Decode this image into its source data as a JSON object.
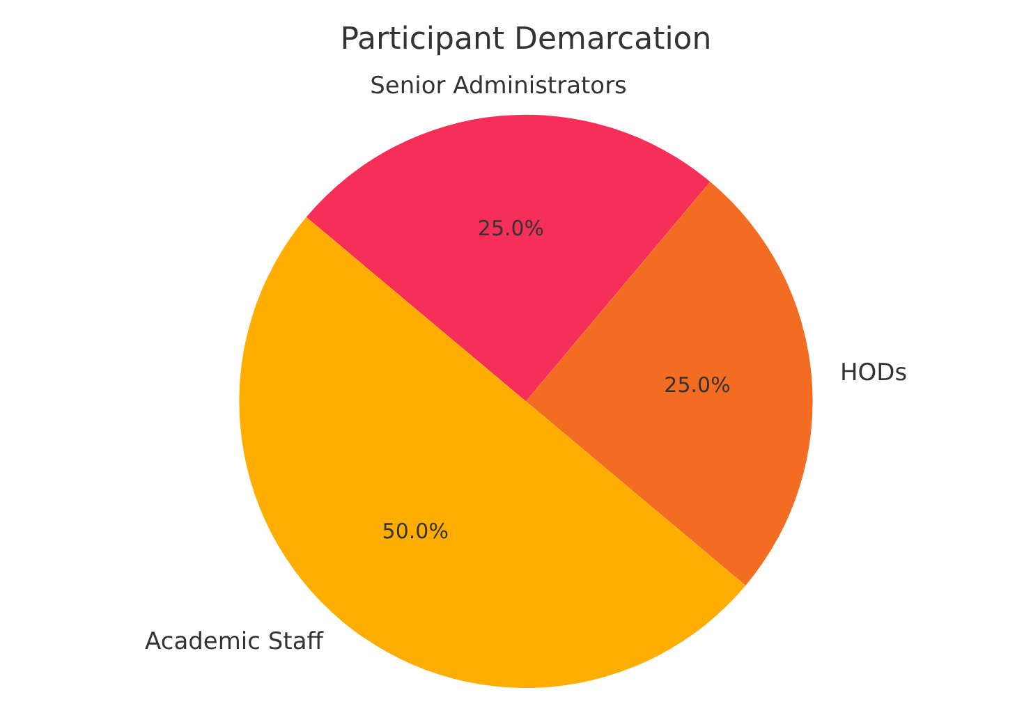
{
  "chart_data": {
    "type": "pie",
    "title": "Participant Demarcation",
    "categories": [
      "Senior Administrators",
      "HODs",
      "Academic Staff"
    ],
    "values": [
      25,
      25,
      50
    ],
    "value_labels": [
      "25.0%",
      "25.0%",
      "50.0%"
    ],
    "colors": [
      "#f52f57",
      "#f26c22",
      "#ffad00"
    ],
    "legend": false
  }
}
